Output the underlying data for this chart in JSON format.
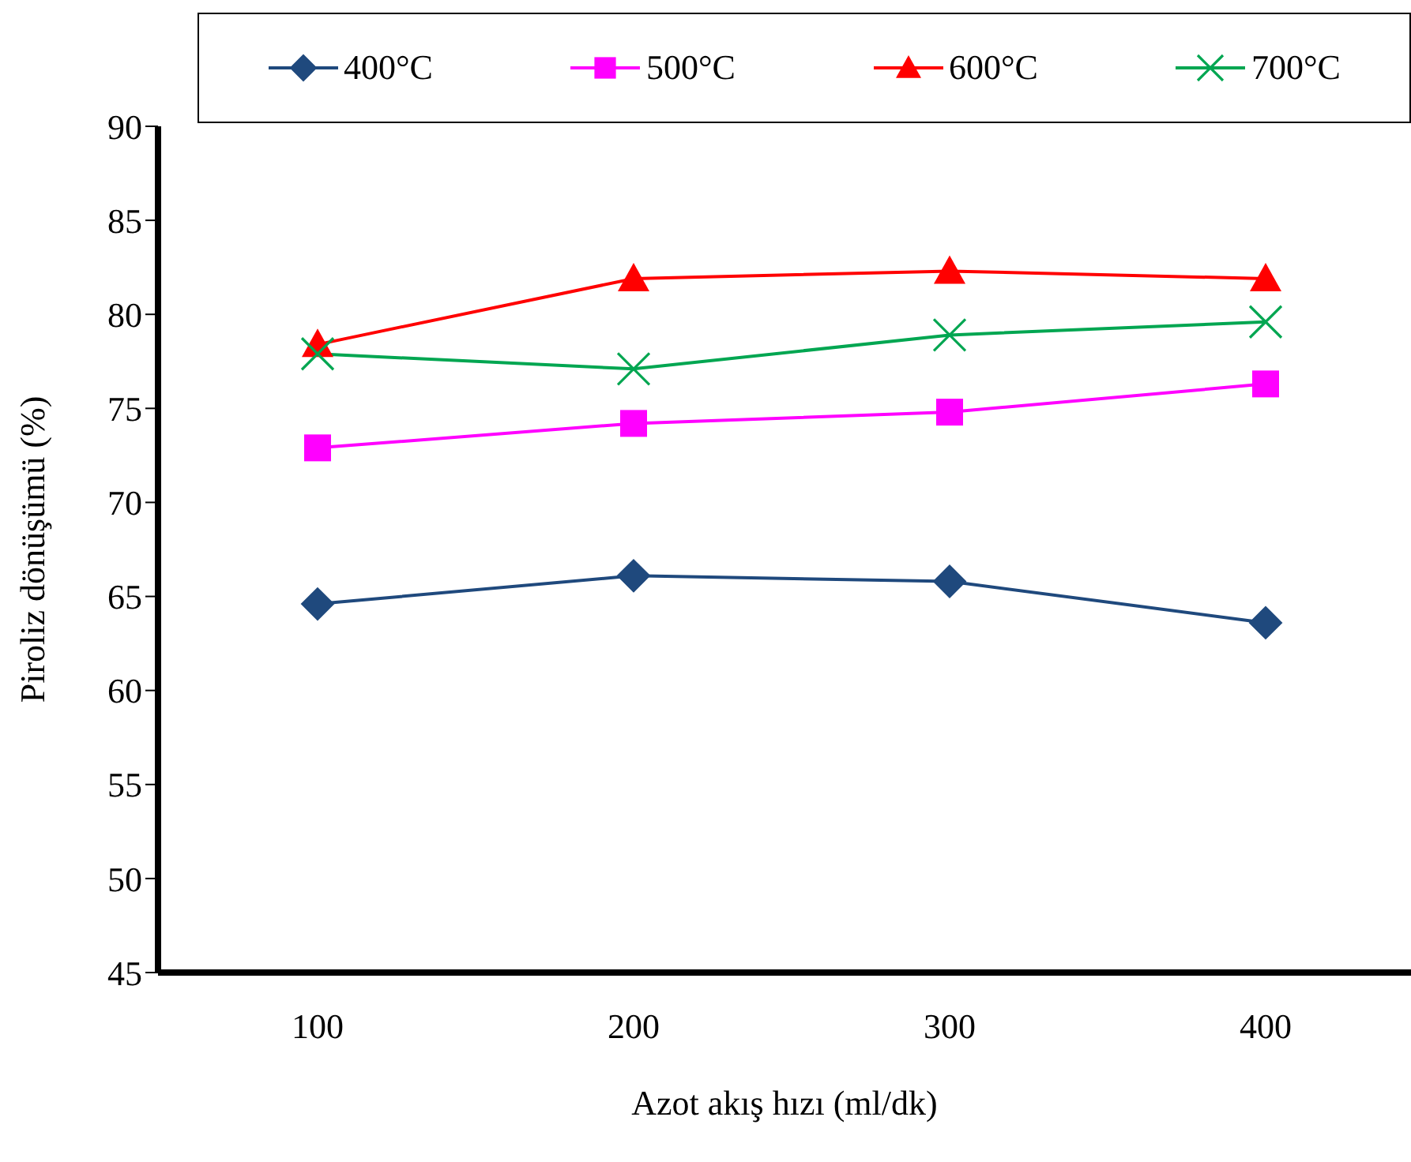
{
  "chart_data": {
    "type": "line",
    "xlabel": "Azot akış hızı (ml/dk)",
    "ylabel": "Piroliz dönüşümü (%)",
    "categories": [
      "100",
      "200",
      "300",
      "400"
    ],
    "series": [
      {
        "name": "400°C",
        "color": "#1f497d",
        "marker": "diamond",
        "values": [
          64.6,
          66.1,
          65.8,
          63.6
        ]
      },
      {
        "name": "500°C",
        "color": "#ff00ff",
        "marker": "square",
        "values": [
          72.9,
          74.2,
          74.8,
          76.3
        ]
      },
      {
        "name": "600°C",
        "color": "#ff0000",
        "marker": "triangle",
        "values": [
          78.4,
          81.9,
          82.3,
          81.9
        ]
      },
      {
        "name": "700°C",
        "color": "#00a651",
        "marker": "cross",
        "values": [
          77.9,
          77.1,
          78.9,
          79.6
        ]
      }
    ],
    "ylim": [
      45,
      90
    ],
    "yticks": [
      45,
      50,
      55,
      60,
      65,
      70,
      75,
      80,
      85,
      90
    ],
    "grid": false,
    "legend": "top"
  }
}
